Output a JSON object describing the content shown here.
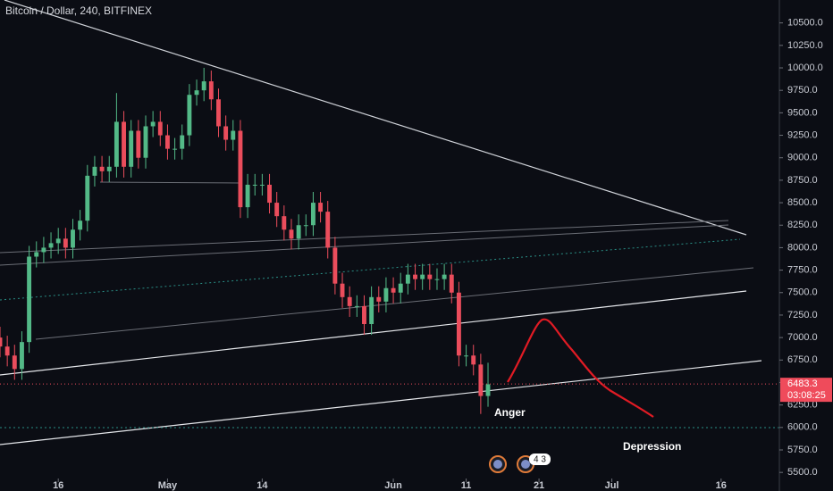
{
  "chart_data": {
    "type": "candlestick",
    "title": "Bitcoin / Dollar, 240, BITFINEX",
    "annotations": [
      "Anger",
      "Depression"
    ],
    "events_badge": "4 3",
    "last_price": 6483.3,
    "last_price_label": "6483.3",
    "countdown": "03:08:25",
    "up_color": "#53b987",
    "down_color": "#eb4d5c",
    "x": [
      8,
      9,
      10,
      11,
      12,
      13,
      14,
      15,
      16,
      17,
      18,
      19,
      20,
      21,
      22,
      23,
      24,
      25,
      26,
      27,
      28,
      29,
      30,
      31,
      32,
      33,
      34,
      35,
      36,
      37,
      38,
      39,
      40,
      41,
      42,
      43,
      44,
      45,
      46,
      47,
      48,
      49,
      50,
      51,
      52,
      53,
      54,
      55,
      56,
      57,
      58,
      59,
      60,
      61,
      62,
      63,
      64,
      65,
      66,
      67,
      68,
      69,
      70,
      71,
      72,
      73,
      74,
      75
    ],
    "open": [
      7000,
      6900,
      6800,
      6650,
      6950,
      7900,
      7950,
      8000,
      8050,
      8100,
      8000,
      8200,
      8300,
      8800,
      8900,
      8850,
      8900,
      9400,
      8900,
      9300,
      9000,
      9350,
      9400,
      9250,
      9100,
      9100,
      9250,
      9700,
      9750,
      9850,
      9650,
      9350,
      9200,
      9300,
      8450,
      8700,
      8700,
      8700,
      8500,
      8350,
      8200,
      8100,
      8250,
      8250,
      8500,
      8400,
      8000,
      7600,
      7450,
      7350,
      7350,
      7150,
      7450,
      7400,
      7550,
      7500,
      7600,
      7700,
      7650,
      7700,
      7650,
      7650,
      7700,
      7500,
      6800,
      6800,
      6700,
      6350
    ],
    "high": [
      7120,
      7020,
      6920,
      7070,
      8020,
      8070,
      8120,
      8170,
      8220,
      8220,
      8320,
      8420,
      8920,
      9020,
      9020,
      9020,
      9720,
      9520,
      9420,
      9420,
      9470,
      9520,
      9520,
      9370,
      9220,
      9370,
      9820,
      9870,
      10000,
      9970,
      9770,
      9470,
      9420,
      9420,
      8820,
      8820,
      8820,
      8820,
      8620,
      8470,
      8320,
      8370,
      8370,
      8620,
      8620,
      8520,
      8120,
      7720,
      7570,
      7470,
      7470,
      7570,
      7570,
      7670,
      7670,
      7720,
      7820,
      7820,
      7820,
      7820,
      7770,
      7820,
      7820,
      7620,
      6920,
      6920,
      6820,
      6720
    ],
    "low": [
      6780,
      6680,
      6530,
      6530,
      6830,
      7780,
      7830,
      7880,
      7930,
      7880,
      7880,
      8080,
      8180,
      8680,
      8730,
      8730,
      8780,
      8780,
      8780,
      8880,
      8880,
      9230,
      9130,
      8980,
      8980,
      8980,
      9130,
      9580,
      9630,
      9530,
      9230,
      9080,
      9080,
      8330,
      8330,
      8580,
      8580,
      8380,
      8230,
      8080,
      7980,
      7980,
      8130,
      8130,
      8280,
      7880,
      7480,
      7330,
      7230,
      7230,
      7030,
      7030,
      7280,
      7280,
      7380,
      7380,
      7480,
      7530,
      7530,
      7530,
      7530,
      7530,
      7380,
      6680,
      6680,
      6580,
      6150,
      6230
    ],
    "close": [
      6900,
      6800,
      6650,
      6950,
      7900,
      7950,
      8000,
      8050,
      8100,
      8000,
      8200,
      8300,
      8800,
      8900,
      8850,
      8900,
      9400,
      8900,
      9300,
      9000,
      9350,
      9400,
      9250,
      9100,
      9100,
      9250,
      9700,
      9750,
      9850,
      9650,
      9350,
      9200,
      9300,
      8450,
      8700,
      8700,
      8700,
      8500,
      8350,
      8200,
      8100,
      8250,
      8250,
      8500,
      8400,
      8000,
      7600,
      7450,
      7350,
      7350,
      7150,
      7450,
      7400,
      7550,
      7500,
      7600,
      7700,
      7650,
      7700,
      7650,
      7650,
      7700,
      7500,
      6800,
      6800,
      6700,
      6350,
      6480
    ],
    "xlim": [
      8,
      115
    ],
    "xticks": [
      {
        "value": 16,
        "label": "16"
      },
      {
        "value": 31,
        "label": "May"
      },
      {
        "value": 44,
        "label": "14"
      },
      {
        "value": 62,
        "label": "Jun"
      },
      {
        "value": 72,
        "label": "11"
      },
      {
        "value": 82,
        "label": "21"
      },
      {
        "value": 92,
        "label": "Jul"
      },
      {
        "value": 107,
        "label": "16"
      }
    ],
    "ylim": [
      5450,
      10600
    ],
    "yticks": [
      {
        "value": 5500,
        "label": "5500.0"
      },
      {
        "value": 5750,
        "label": "5750.0"
      },
      {
        "value": 6000,
        "label": "6000.0"
      },
      {
        "value": 6250,
        "label": "6250.0"
      },
      {
        "value": 6500,
        "label": "6500.0"
      },
      {
        "value": 6750,
        "label": "6750.0"
      },
      {
        "value": 7000,
        "label": "7000.0"
      },
      {
        "value": 7250,
        "label": "7250.0"
      },
      {
        "value": 7500,
        "label": "7500.0"
      },
      {
        "value": 7750,
        "label": "7750.0"
      },
      {
        "value": 8000,
        "label": "8000.0"
      },
      {
        "value": 8250,
        "label": "8250.0"
      },
      {
        "value": 8500,
        "label": "8500.0"
      },
      {
        "value": 8750,
        "label": "8750.0"
      },
      {
        "value": 9000,
        "label": "9000.0"
      },
      {
        "value": 9250,
        "label": "9250.0"
      },
      {
        "value": 9500,
        "label": "9500.0"
      },
      {
        "value": 9750,
        "label": "9750.0"
      },
      {
        "value": 10000,
        "label": "10000.0"
      },
      {
        "value": 10250,
        "label": "10250.0"
      },
      {
        "value": 10500,
        "label": "10500.0"
      }
    ]
  }
}
